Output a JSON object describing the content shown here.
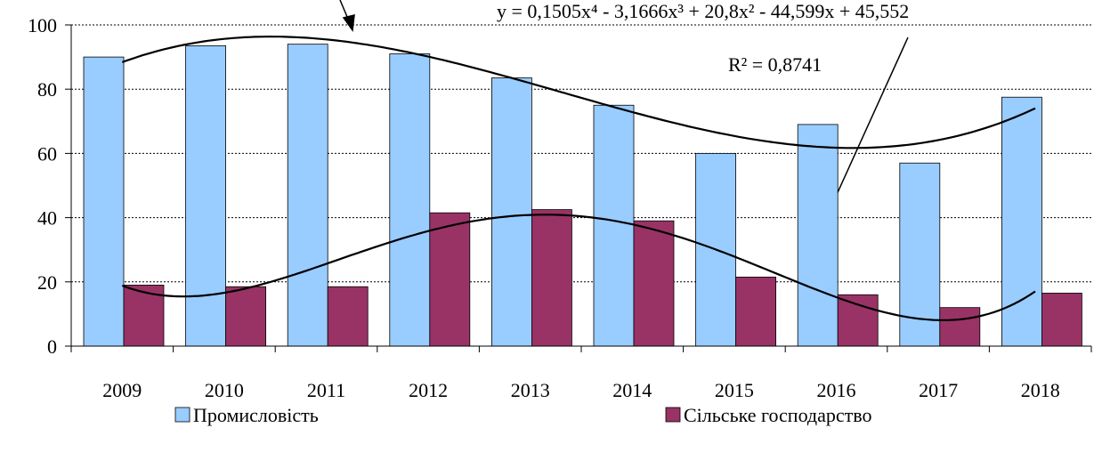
{
  "chart_data": {
    "type": "bar",
    "categories": [
      "2009",
      "2010",
      "2011",
      "2012",
      "2013",
      "2014",
      "2015",
      "2016",
      "2017",
      "2018"
    ],
    "series": [
      {
        "name": "Промисловість",
        "color": "#99ccff",
        "trendline_order": 3,
        "values": [
          90,
          93.5,
          94,
          91,
          83.5,
          75,
          60,
          69,
          57,
          77.5
        ]
      },
      {
        "name": "Сільське господарство",
        "color": "#993366",
        "trendline_order": 4,
        "values": [
          19,
          18.5,
          18.5,
          41.5,
          42.5,
          39,
          21.5,
          16,
          12,
          16.5
        ]
      }
    ],
    "ylim": [
      0,
      100
    ],
    "yticks": [
      0,
      20,
      40,
      60,
      80,
      100
    ],
    "grid": true,
    "legend": "bottom",
    "annotations": [
      "y = 0,1505x⁴ - 3,1666x³ + 20,8x² - 44,599x + 45,552",
      "R² = 0,8741"
    ]
  }
}
